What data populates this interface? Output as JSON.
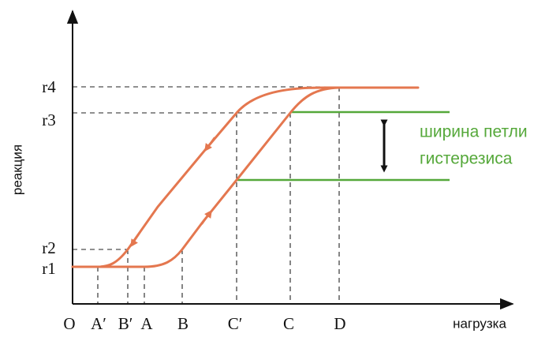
{
  "axes": {
    "x_title": "нагрузка",
    "y_title": "реакция",
    "origin_label": "O"
  },
  "y_levels": [
    "r4",
    "r3",
    "r2",
    "r1"
  ],
  "x_marks": [
    "A′",
    "B′",
    "A",
    "B",
    "C′",
    "C",
    "D"
  ],
  "annotation": {
    "line1": "ширина петли",
    "line2": "гистерезиса"
  },
  "colors": {
    "curve": "#e4774f",
    "annotation": "#55a83a",
    "axis": "#111111",
    "dashed_guides": "#222222"
  }
}
